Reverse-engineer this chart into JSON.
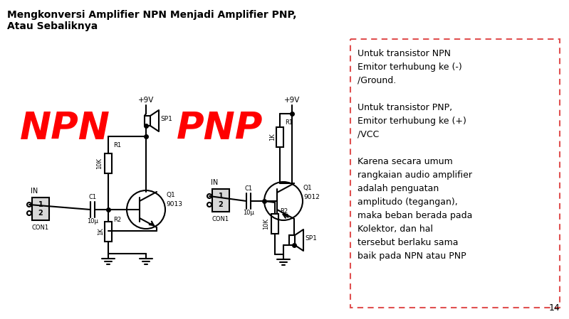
{
  "title_line1": "Mengkonversi Amplifier NPN Menjadi Amplifier PNP,",
  "title_line2": "Atau Sebaliknya",
  "npn_label": "NPN",
  "pnp_label": "PNP",
  "page_number": "14",
  "text_box_lines": [
    "Untuk transistor NPN",
    "Emitor terhubung ke (-)",
    "/Ground.",
    "",
    "Untuk transistor PNP,",
    "Emitor terhubung ke (+)",
    "/VCC",
    "",
    "Karena secara umum",
    "rangkaian audio amplifier",
    "adalah penguatan",
    "amplitudo (tegangan),",
    "maka beban berada pada",
    "Kolektor, dan hal",
    "tersebut berlaku sama",
    "baik pada NPN atau PNP"
  ],
  "bg_color": "#ffffff",
  "title_color": "#000000",
  "npn_color": "#ff0000",
  "pnp_color": "#ff0000",
  "circuit_color": "#000000",
  "box_border_color": "#e05050"
}
